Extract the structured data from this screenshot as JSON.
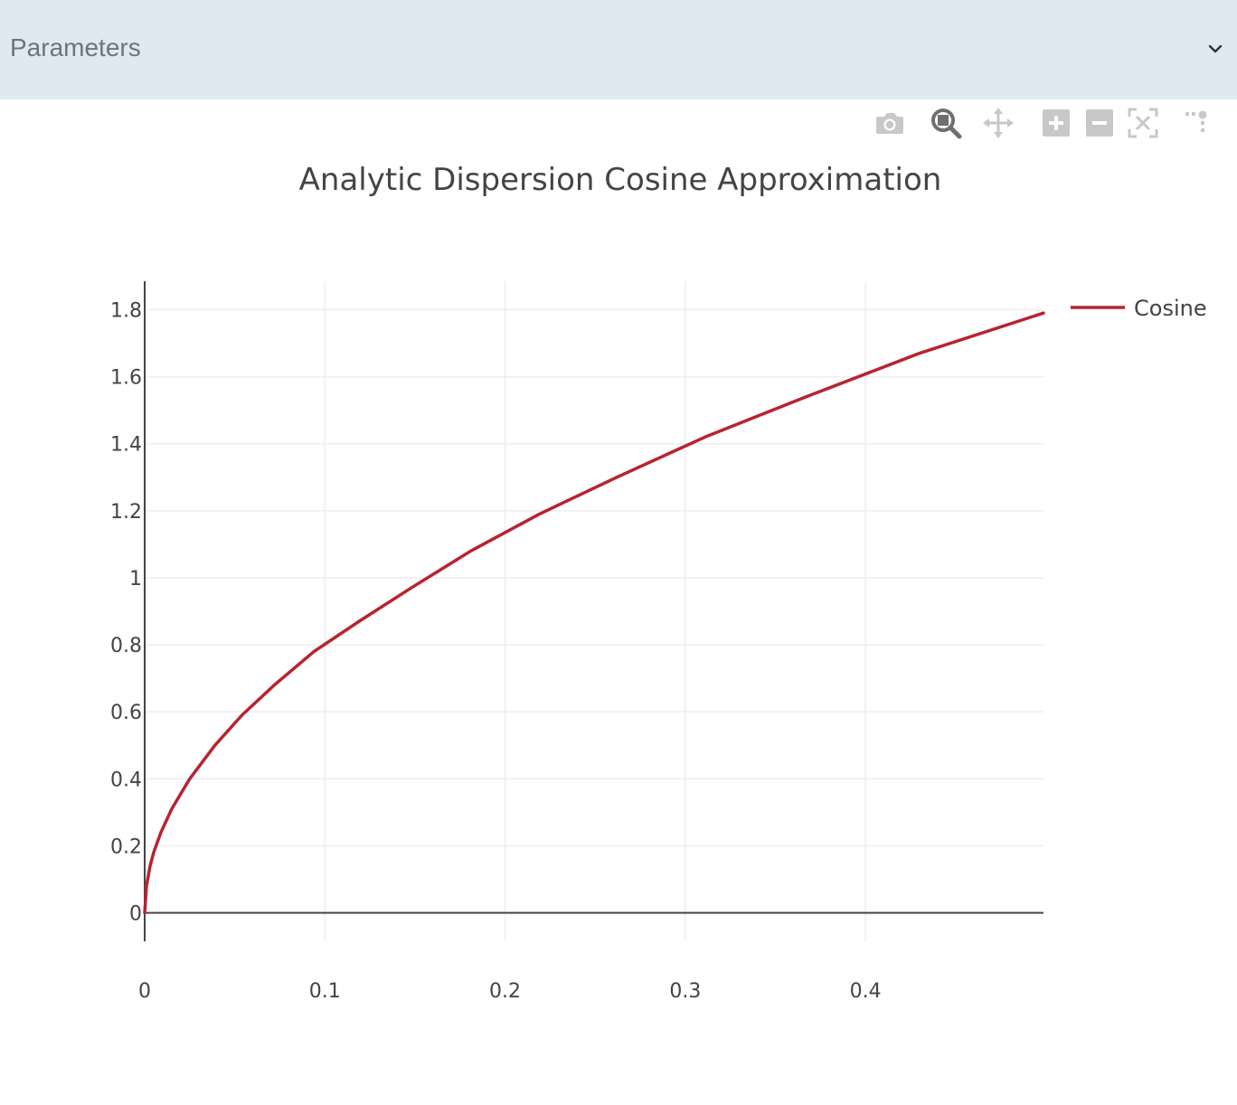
{
  "accordion": {
    "title": "Parameters"
  },
  "colors": {
    "accordion_bg": "#dfe9f0",
    "trace": "#b8232f",
    "grid": "#eeeeee",
    "axis": "#444444",
    "modebar_icon": "#c8c8c8",
    "modebar_active": "#6f6f6f"
  },
  "modebar": {
    "buttons": [
      {
        "name": "camera-icon",
        "active": false
      },
      {
        "name": "zoom-icon",
        "active": true
      },
      {
        "name": "pan-icon",
        "active": false
      },
      {
        "name": "zoom-in-icon",
        "active": false
      },
      {
        "name": "zoom-out-icon",
        "active": false
      },
      {
        "name": "autoscale-icon",
        "active": false
      },
      {
        "name": "spike-lines-icon",
        "active": false
      },
      {
        "name": "reset-axes-icon",
        "active": false
      }
    ]
  },
  "chart_data": {
    "type": "line",
    "title": "Analytic Dispersion Cosine Approximation",
    "xlabel": "",
    "ylabel": "",
    "xlim": [
      0,
      0.4988
    ],
    "ylim": [
      -0.085,
      1.885
    ],
    "xticks": [
      0,
      0.1,
      0.2,
      0.3,
      0.4
    ],
    "xtick_labels": [
      "0",
      "0.1",
      "0.2",
      "0.3",
      "0.4"
    ],
    "yticks": [
      0,
      0.2,
      0.4,
      0.6,
      0.8,
      1,
      1.2,
      1.4,
      1.6,
      1.8
    ],
    "ytick_labels": [
      "0",
      "0.2",
      "0.4",
      "0.6",
      "0.8",
      "1",
      "1.2",
      "1.4",
      "1.6",
      "1.8"
    ],
    "grid": true,
    "legend_position": "top-right",
    "series": [
      {
        "name": "Cosine",
        "color": "#b8232f",
        "x": [
          0,
          0.001,
          0.003,
          0.005,
          0.009,
          0.015,
          0.025,
          0.039,
          0.054,
          0.072,
          0.094,
          0.119,
          0.148,
          0.181,
          0.219,
          0.262,
          0.311,
          0.367,
          0.43,
          0.4988
        ],
        "y": [
          0,
          0.08,
          0.14,
          0.18,
          0.24,
          0.31,
          0.4,
          0.5,
          0.59,
          0.68,
          0.78,
          0.87,
          0.97,
          1.08,
          1.19,
          1.3,
          1.42,
          1.54,
          1.67,
          1.79
        ]
      }
    ]
  }
}
